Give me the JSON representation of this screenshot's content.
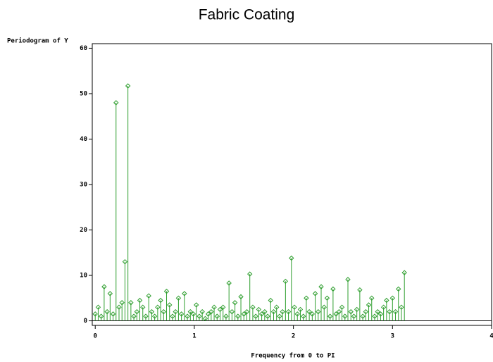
{
  "chart_data": {
    "type": "needle",
    "title": "Fabric Coating",
    "ylabel": "Periodogram of Y",
    "xlabel": "Frequency from 0 to PI",
    "color": "#2e9e2e",
    "xlim": [
      -0.03,
      4
    ],
    "xticks": [
      0,
      1,
      2,
      3,
      4
    ],
    "ylim": [
      -1,
      61
    ],
    "yticks": [
      0,
      10,
      20,
      30,
      40,
      50,
      60
    ],
    "x": [
      0,
      0.03,
      0.06,
      0.09,
      0.12,
      0.15,
      0.18,
      0.21,
      0.24,
      0.27,
      0.3,
      0.33,
      0.36,
      0.39,
      0.42,
      0.45,
      0.48,
      0.51,
      0.54,
      0.57,
      0.6,
      0.63,
      0.66,
      0.69,
      0.72,
      0.75,
      0.78,
      0.81,
      0.84,
      0.87,
      0.9,
      0.93,
      0.96,
      0.99,
      1.02,
      1.05,
      1.08,
      1.11,
      1.14,
      1.17,
      1.2,
      1.23,
      1.26,
      1.29,
      1.32,
      1.35,
      1.38,
      1.41,
      1.44,
      1.47,
      1.5,
      1.53,
      1.56,
      1.59,
      1.62,
      1.65,
      1.68,
      1.71,
      1.74,
      1.77,
      1.8,
      1.83,
      1.86,
      1.89,
      1.92,
      1.95,
      1.98,
      2.01,
      2.04,
      2.07,
      2.1,
      2.13,
      2.16,
      2.19,
      2.22,
      2.25,
      2.28,
      2.31,
      2.34,
      2.37,
      2.4,
      2.43,
      2.46,
      2.49,
      2.52,
      2.55,
      2.58,
      2.61,
      2.64,
      2.67,
      2.7,
      2.73,
      2.76,
      2.79,
      2.82,
      2.85,
      2.88,
      2.91,
      2.94,
      2.97,
      3,
      3.03,
      3.06,
      3.09,
      3.12
    ],
    "values": [
      1.5,
      3,
      1,
      7.5,
      2,
      6,
      1.5,
      48,
      3,
      4,
      13,
      51.7,
      4,
      1,
      2,
      4.5,
      3,
      1,
      5.5,
      2,
      1,
      3,
      4.5,
      2,
      6.5,
      3.5,
      1,
      2,
      5,
      1.5,
      6,
      1,
      2,
      1.5,
      3.5,
      1,
      2,
      0.5,
      1.5,
      2,
      3,
      1,
      2.5,
      3,
      1,
      8.3,
      2,
      4,
      1,
      5.3,
      1.5,
      2,
      10.3,
      3,
      1,
      2.5,
      1.5,
      2,
      1,
      4.5,
      2,
      3,
      1,
      2,
      8.7,
      2,
      13.8,
      3,
      1.5,
      2.5,
      1,
      5,
      2,
      1.5,
      6,
      2,
      7.5,
      3,
      5,
      1,
      7,
      1.5,
      2,
      3,
      1,
      9.1,
      2,
      1,
      2.5,
      6.8,
      1,
      2,
      3.5,
      5,
      1,
      2,
      1.5,
      3,
      4.5,
      2,
      5,
      2,
      7,
      3,
      10.6
    ]
  }
}
